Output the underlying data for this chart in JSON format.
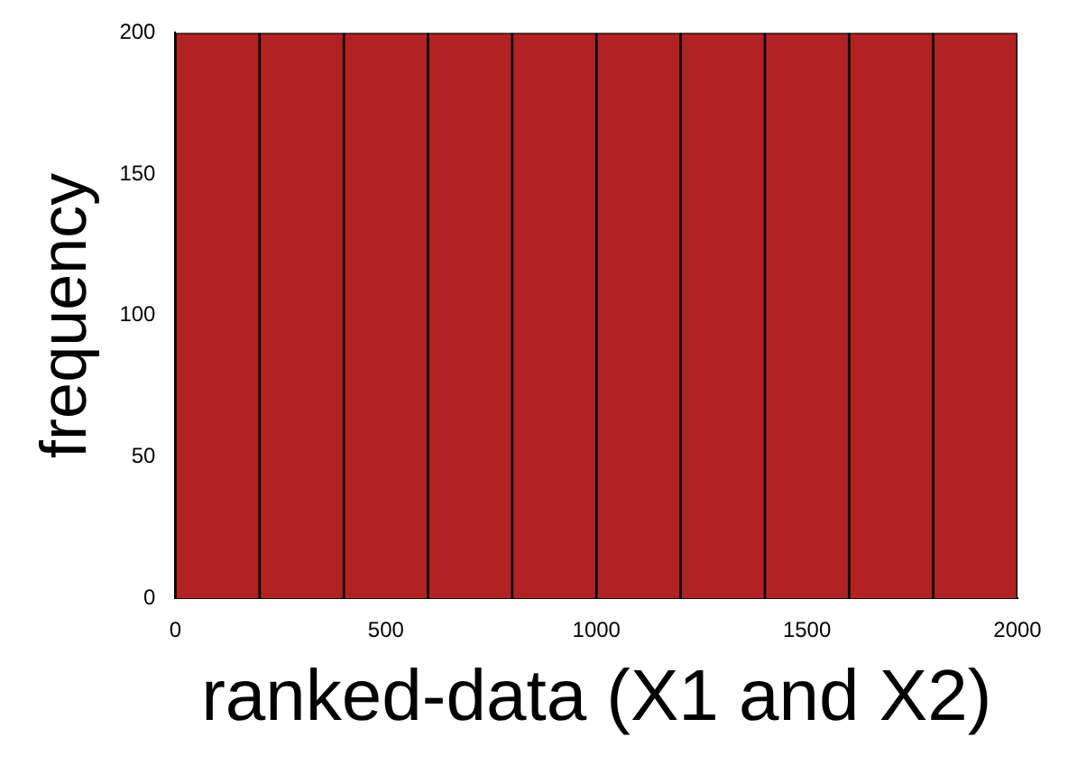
{
  "chart_data": {
    "type": "histogram",
    "xlabel": "ranked-data (X1 and X2)",
    "ylabel": "frequency",
    "bins": [
      0,
      200,
      400,
      600,
      800,
      1000,
      1200,
      1400,
      1600,
      1800,
      2000
    ],
    "values": [
      200,
      200,
      200,
      200,
      200,
      200,
      200,
      200,
      200,
      200
    ],
    "color": "#b22222",
    "xlim": [
      0,
      2000
    ],
    "xticks": [
      0,
      500,
      1000,
      1500,
      2000
    ],
    "ylim": [
      0,
      200
    ],
    "yticks": [
      0,
      50,
      100,
      150,
      200
    ],
    "grid": false
  }
}
